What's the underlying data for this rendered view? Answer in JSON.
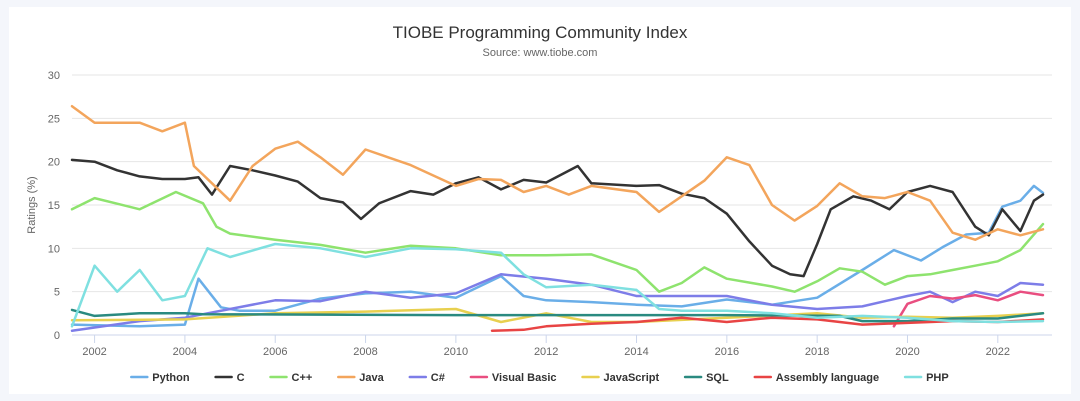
{
  "chart_data": {
    "type": "line",
    "title": "TIOBE Programming Community Index",
    "subtitle": "Source: www.tiobe.com",
    "xlabel": "",
    "ylabel": "Ratings (%)",
    "xlim": [
      2001.5,
      2023.2
    ],
    "ylim": [
      0,
      30
    ],
    "yticks": [
      0,
      5,
      10,
      15,
      20,
      25,
      30
    ],
    "xticks": [
      2002,
      2004,
      2006,
      2008,
      2010,
      2012,
      2014,
      2016,
      2018,
      2020,
      2022
    ],
    "grid": "horizontal",
    "legend": "bottom-center",
    "series": [
      {
        "name": "Python",
        "color": "#6aaee8",
        "points": [
          [
            2001.5,
            1.2
          ],
          [
            2003,
            1.0
          ],
          [
            2004,
            1.2
          ],
          [
            2004.3,
            6.5
          ],
          [
            2004.8,
            3.2
          ],
          [
            2005.2,
            2.8
          ],
          [
            2006,
            2.8
          ],
          [
            2007,
            4.2
          ],
          [
            2008,
            4.8
          ],
          [
            2009,
            5.0
          ],
          [
            2010,
            4.3
          ],
          [
            2011,
            6.8
          ],
          [
            2011.5,
            4.5
          ],
          [
            2012,
            4.0
          ],
          [
            2013,
            3.8
          ],
          [
            2014,
            3.5
          ],
          [
            2015,
            3.3
          ],
          [
            2016,
            4.1
          ],
          [
            2017,
            3.5
          ],
          [
            2018,
            4.3
          ],
          [
            2019,
            7.5
          ],
          [
            2019.7,
            9.8
          ],
          [
            2020.3,
            8.6
          ],
          [
            2020.8,
            10.2
          ],
          [
            2021.3,
            11.6
          ],
          [
            2021.8,
            11.8
          ],
          [
            2022.1,
            14.8
          ],
          [
            2022.5,
            15.5
          ],
          [
            2022.8,
            17.2
          ],
          [
            2023.0,
            16.4
          ]
        ]
      },
      {
        "name": "C",
        "color": "#333333",
        "points": [
          [
            2001.5,
            20.2
          ],
          [
            2002,
            20.0
          ],
          [
            2002.5,
            19.0
          ],
          [
            2003,
            18.3
          ],
          [
            2003.5,
            18.0
          ],
          [
            2004,
            18.0
          ],
          [
            2004.3,
            18.2
          ],
          [
            2004.6,
            16.2
          ],
          [
            2005,
            19.5
          ],
          [
            2005.5,
            19.0
          ],
          [
            2006,
            18.4
          ],
          [
            2006.5,
            17.7
          ],
          [
            2007,
            15.8
          ],
          [
            2007.5,
            15.3
          ],
          [
            2007.9,
            13.4
          ],
          [
            2008.3,
            15.2
          ],
          [
            2009,
            16.6
          ],
          [
            2009.5,
            16.2
          ],
          [
            2010,
            17.5
          ],
          [
            2010.5,
            18.2
          ],
          [
            2011,
            16.8
          ],
          [
            2011.5,
            17.9
          ],
          [
            2012,
            17.6
          ],
          [
            2012.7,
            19.5
          ],
          [
            2013,
            17.5
          ],
          [
            2014,
            17.2
          ],
          [
            2014.5,
            17.3
          ],
          [
            2015,
            16.3
          ],
          [
            2015.5,
            15.8
          ],
          [
            2016,
            14.0
          ],
          [
            2016.5,
            10.8
          ],
          [
            2017,
            8.0
          ],
          [
            2017.4,
            7.0
          ],
          [
            2017.7,
            6.8
          ],
          [
            2018,
            10.5
          ],
          [
            2018.3,
            14.5
          ],
          [
            2018.8,
            16.0
          ],
          [
            2019.2,
            15.5
          ],
          [
            2019.6,
            14.5
          ],
          [
            2020,
            16.5
          ],
          [
            2020.5,
            17.2
          ],
          [
            2021,
            16.5
          ],
          [
            2021.5,
            12.5
          ],
          [
            2021.8,
            11.5
          ],
          [
            2022.1,
            14.5
          ],
          [
            2022.5,
            12.0
          ],
          [
            2022.8,
            15.5
          ],
          [
            2023.0,
            16.2
          ]
        ]
      },
      {
        "name": "C++",
        "color": "#8ee36e",
        "points": [
          [
            2001.5,
            14.5
          ],
          [
            2002,
            15.8
          ],
          [
            2003,
            14.5
          ],
          [
            2003.8,
            16.5
          ],
          [
            2004.4,
            15.2
          ],
          [
            2004.7,
            12.5
          ],
          [
            2005,
            11.7
          ],
          [
            2006,
            11.0
          ],
          [
            2007,
            10.4
          ],
          [
            2008,
            9.5
          ],
          [
            2009,
            10.3
          ],
          [
            2010,
            10.0
          ],
          [
            2011,
            9.2
          ],
          [
            2012,
            9.2
          ],
          [
            2013,
            9.3
          ],
          [
            2014,
            7.5
          ],
          [
            2014.5,
            5.0
          ],
          [
            2015,
            6.0
          ],
          [
            2015.5,
            7.8
          ],
          [
            2016,
            6.5
          ],
          [
            2017,
            5.6
          ],
          [
            2017.5,
            5.0
          ],
          [
            2018,
            6.2
          ],
          [
            2018.5,
            7.7
          ],
          [
            2019,
            7.3
          ],
          [
            2019.5,
            5.8
          ],
          [
            2020,
            6.8
          ],
          [
            2020.5,
            7.0
          ],
          [
            2021,
            7.5
          ],
          [
            2021.5,
            8.0
          ],
          [
            2022,
            8.5
          ],
          [
            2022.5,
            9.8
          ],
          [
            2023.0,
            12.8
          ]
        ]
      },
      {
        "name": "Java",
        "color": "#f3a55c",
        "points": [
          [
            2001.5,
            26.4
          ],
          [
            2002,
            24.5
          ],
          [
            2003,
            24.5
          ],
          [
            2003.5,
            23.5
          ],
          [
            2004,
            24.5
          ],
          [
            2004.2,
            19.5
          ],
          [
            2004.6,
            17.5
          ],
          [
            2005,
            15.5
          ],
          [
            2005.5,
            19.5
          ],
          [
            2006,
            21.5
          ],
          [
            2006.5,
            22.3
          ],
          [
            2007,
            20.5
          ],
          [
            2007.5,
            18.5
          ],
          [
            2008,
            21.4
          ],
          [
            2008.5,
            20.5
          ],
          [
            2009,
            19.6
          ],
          [
            2010,
            17.2
          ],
          [
            2010.5,
            18.0
          ],
          [
            2011,
            17.9
          ],
          [
            2011.5,
            16.5
          ],
          [
            2012,
            17.2
          ],
          [
            2012.5,
            16.2
          ],
          [
            2013,
            17.2
          ],
          [
            2014,
            16.5
          ],
          [
            2014.5,
            14.2
          ],
          [
            2015,
            16.0
          ],
          [
            2015.5,
            17.8
          ],
          [
            2016,
            20.5
          ],
          [
            2016.5,
            19.6
          ],
          [
            2017,
            15.0
          ],
          [
            2017.5,
            13.2
          ],
          [
            2018,
            14.9
          ],
          [
            2018.5,
            17.5
          ],
          [
            2019,
            16.0
          ],
          [
            2019.5,
            15.8
          ],
          [
            2020,
            16.5
          ],
          [
            2020.5,
            15.5
          ],
          [
            2021,
            11.8
          ],
          [
            2021.5,
            11.0
          ],
          [
            2022,
            12.2
          ],
          [
            2022.5,
            11.5
          ],
          [
            2023.0,
            12.2
          ]
        ]
      },
      {
        "name": "C#",
        "color": "#7d7de8",
        "points": [
          [
            2001.5,
            0.5
          ],
          [
            2003,
            1.6
          ],
          [
            2004,
            2.0
          ],
          [
            2005,
            3.0
          ],
          [
            2006,
            4.0
          ],
          [
            2007,
            3.9
          ],
          [
            2008,
            5.0
          ],
          [
            2009,
            4.3
          ],
          [
            2010,
            4.8
          ],
          [
            2011,
            7.0
          ],
          [
            2012,
            6.5
          ],
          [
            2013,
            5.8
          ],
          [
            2014,
            4.5
          ],
          [
            2015,
            4.5
          ],
          [
            2016,
            4.5
          ],
          [
            2017,
            3.5
          ],
          [
            2018,
            3.0
          ],
          [
            2019,
            3.3
          ],
          [
            2020,
            4.5
          ],
          [
            2020.5,
            5.0
          ],
          [
            2021,
            3.8
          ],
          [
            2021.5,
            5.0
          ],
          [
            2022,
            4.5
          ],
          [
            2022.5,
            6.0
          ],
          [
            2023.0,
            5.8
          ]
        ]
      },
      {
        "name": "Visual Basic",
        "color": "#e94e80",
        "points": [
          [
            2019.7,
            1.0
          ],
          [
            2020,
            3.6
          ],
          [
            2020.5,
            4.5
          ],
          [
            2021,
            4.2
          ],
          [
            2021.5,
            4.6
          ],
          [
            2022,
            4.0
          ],
          [
            2022.5,
            5.0
          ],
          [
            2023.0,
            4.6
          ]
        ]
      },
      {
        "name": "JavaScript",
        "color": "#e8d04f",
        "points": [
          [
            2001.5,
            1.7
          ],
          [
            2004,
            1.8
          ],
          [
            2006,
            2.5
          ],
          [
            2008,
            2.7
          ],
          [
            2010,
            3.0
          ],
          [
            2011,
            1.5
          ],
          [
            2012,
            2.5
          ],
          [
            2013,
            1.5
          ],
          [
            2014,
            1.5
          ],
          [
            2016,
            2.0
          ],
          [
            2018,
            2.5
          ],
          [
            2019,
            2.0
          ],
          [
            2020,
            2.1
          ],
          [
            2021,
            2.0
          ],
          [
            2022,
            2.2
          ],
          [
            2023.0,
            2.5
          ]
        ]
      },
      {
        "name": "SQL",
        "color": "#2a8a80",
        "points": [
          [
            2001.5,
            2.9
          ],
          [
            2002,
            2.2
          ],
          [
            2003,
            2.5
          ],
          [
            2004,
            2.5
          ],
          [
            2004.4,
            2.4
          ],
          [
            2010,
            2.3
          ],
          [
            2016,
            2.3
          ],
          [
            2018.5,
            2.2
          ],
          [
            2019,
            1.6
          ],
          [
            2020,
            1.6
          ],
          [
            2021,
            1.9
          ],
          [
            2022,
            1.9
          ],
          [
            2023.0,
            2.5
          ]
        ]
      },
      {
        "name": "Assembly language",
        "color": "#e84444",
        "points": [
          [
            2010.8,
            0.5
          ],
          [
            2011.5,
            0.6
          ],
          [
            2012,
            1.0
          ],
          [
            2013,
            1.3
          ],
          [
            2014,
            1.5
          ],
          [
            2015,
            2.0
          ],
          [
            2016,
            1.5
          ],
          [
            2017,
            2.0
          ],
          [
            2018,
            1.8
          ],
          [
            2019,
            1.2
          ],
          [
            2020,
            1.4
          ],
          [
            2021,
            1.6
          ],
          [
            2022,
            1.5
          ],
          [
            2023.0,
            1.8
          ]
        ]
      },
      {
        "name": "PHP",
        "color": "#7fe0e0",
        "points": [
          [
            2001.5,
            1.0
          ],
          [
            2002,
            8.0
          ],
          [
            2002.5,
            5.0
          ],
          [
            2003,
            7.5
          ],
          [
            2003.5,
            4.0
          ],
          [
            2004,
            4.5
          ],
          [
            2004.5,
            10.0
          ],
          [
            2005,
            9.0
          ],
          [
            2006,
            10.5
          ],
          [
            2007,
            10.0
          ],
          [
            2008,
            9.0
          ],
          [
            2009,
            10.0
          ],
          [
            2010,
            9.9
          ],
          [
            2011,
            9.5
          ],
          [
            2011.5,
            7.0
          ],
          [
            2012,
            5.5
          ],
          [
            2013,
            5.8
          ],
          [
            2014,
            5.2
          ],
          [
            2014.5,
            3.0
          ],
          [
            2015,
            2.8
          ],
          [
            2016,
            2.8
          ],
          [
            2017,
            2.5
          ],
          [
            2018,
            2.0
          ],
          [
            2019,
            2.2
          ],
          [
            2020,
            2.0
          ],
          [
            2021,
            1.6
          ],
          [
            2022,
            1.5
          ],
          [
            2023.0,
            1.6
          ]
        ]
      }
    ]
  }
}
